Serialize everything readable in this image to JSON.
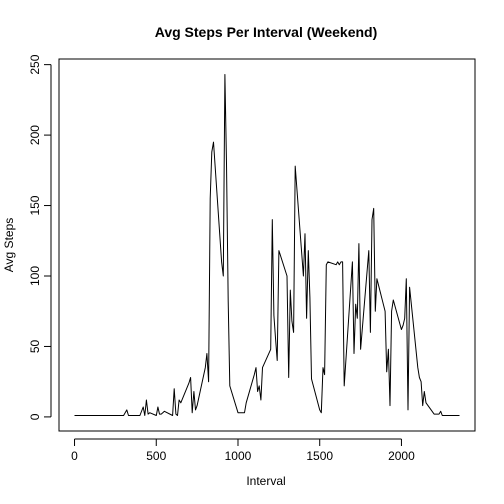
{
  "chart_data": {
    "type": "line",
    "title": "Avg Steps Per Interval (Weekend)",
    "xlabel": "Interval",
    "ylabel": "Avg Steps",
    "xlim": [
      -95,
      2450
    ],
    "ylim": [
      -10,
      254
    ],
    "xticks": [
      0,
      500,
      1000,
      1500,
      2000
    ],
    "yticks": [
      0,
      50,
      100,
      150,
      200,
      250
    ],
    "grid": false,
    "line_color": "#000000",
    "series": [
      {
        "x": [
          0,
          50,
          100,
          200,
          300,
          320,
          330,
          340,
          400,
          420,
          430,
          440,
          450,
          460,
          500,
          510,
          520,
          530,
          540,
          550,
          600,
          610,
          620,
          630,
          640,
          650,
          700,
          710,
          720,
          730,
          740,
          750,
          800,
          810,
          820,
          830,
          840,
          850,
          900,
          910,
          920,
          930,
          940,
          950,
          1000,
          1010,
          1020,
          1030,
          1040,
          1050,
          1100,
          1110,
          1120,
          1130,
          1140,
          1150,
          1200,
          1210,
          1220,
          1230,
          1240,
          1250,
          1300,
          1310,
          1320,
          1330,
          1340,
          1350,
          1400,
          1410,
          1420,
          1430,
          1440,
          1450,
          1500,
          1510,
          1520,
          1530,
          1540,
          1550,
          1600,
          1610,
          1620,
          1630,
          1640,
          1650,
          1700,
          1710,
          1720,
          1730,
          1740,
          1750,
          1800,
          1810,
          1820,
          1830,
          1840,
          1850,
          1900,
          1910,
          1920,
          1930,
          1940,
          1950,
          2000,
          2010,
          2020,
          2030,
          2040,
          2050,
          2100,
          2110,
          2120,
          2130,
          2140,
          2150,
          2200,
          2210,
          2220,
          2230,
          2240,
          2250,
          2300,
          2310,
          2320,
          2330,
          2340,
          2355
        ],
        "y": [
          1,
          1,
          1,
          1,
          1,
          5,
          1,
          1,
          1,
          7,
          1,
          12,
          2,
          3,
          1,
          7,
          2,
          2,
          3,
          4,
          1,
          20,
          2,
          1,
          12,
          10,
          24,
          28,
          3,
          18,
          5,
          8,
          35,
          45,
          25,
          155,
          188,
          195,
          110,
          100,
          243,
          180,
          82,
          22,
          3,
          3,
          3,
          3,
          3,
          10,
          30,
          35,
          18,
          22,
          12,
          35,
          48,
          140,
          72,
          55,
          40,
          118,
          100,
          28,
          90,
          68,
          60,
          178,
          100,
          130,
          70,
          118,
          85,
          27,
          5,
          3,
          35,
          30,
          108,
          110,
          108,
          110,
          108,
          110,
          110,
          22,
          110,
          45,
          80,
          70,
          123,
          48,
          118,
          60,
          140,
          148,
          75,
          98,
          75,
          32,
          48,
          8,
          75,
          83,
          62,
          65,
          70,
          98,
          5,
          92,
          35,
          28,
          25,
          8,
          18,
          10,
          2,
          2,
          2,
          2,
          4,
          1,
          1,
          1,
          1,
          1,
          1,
          1
        ]
      }
    ]
  }
}
